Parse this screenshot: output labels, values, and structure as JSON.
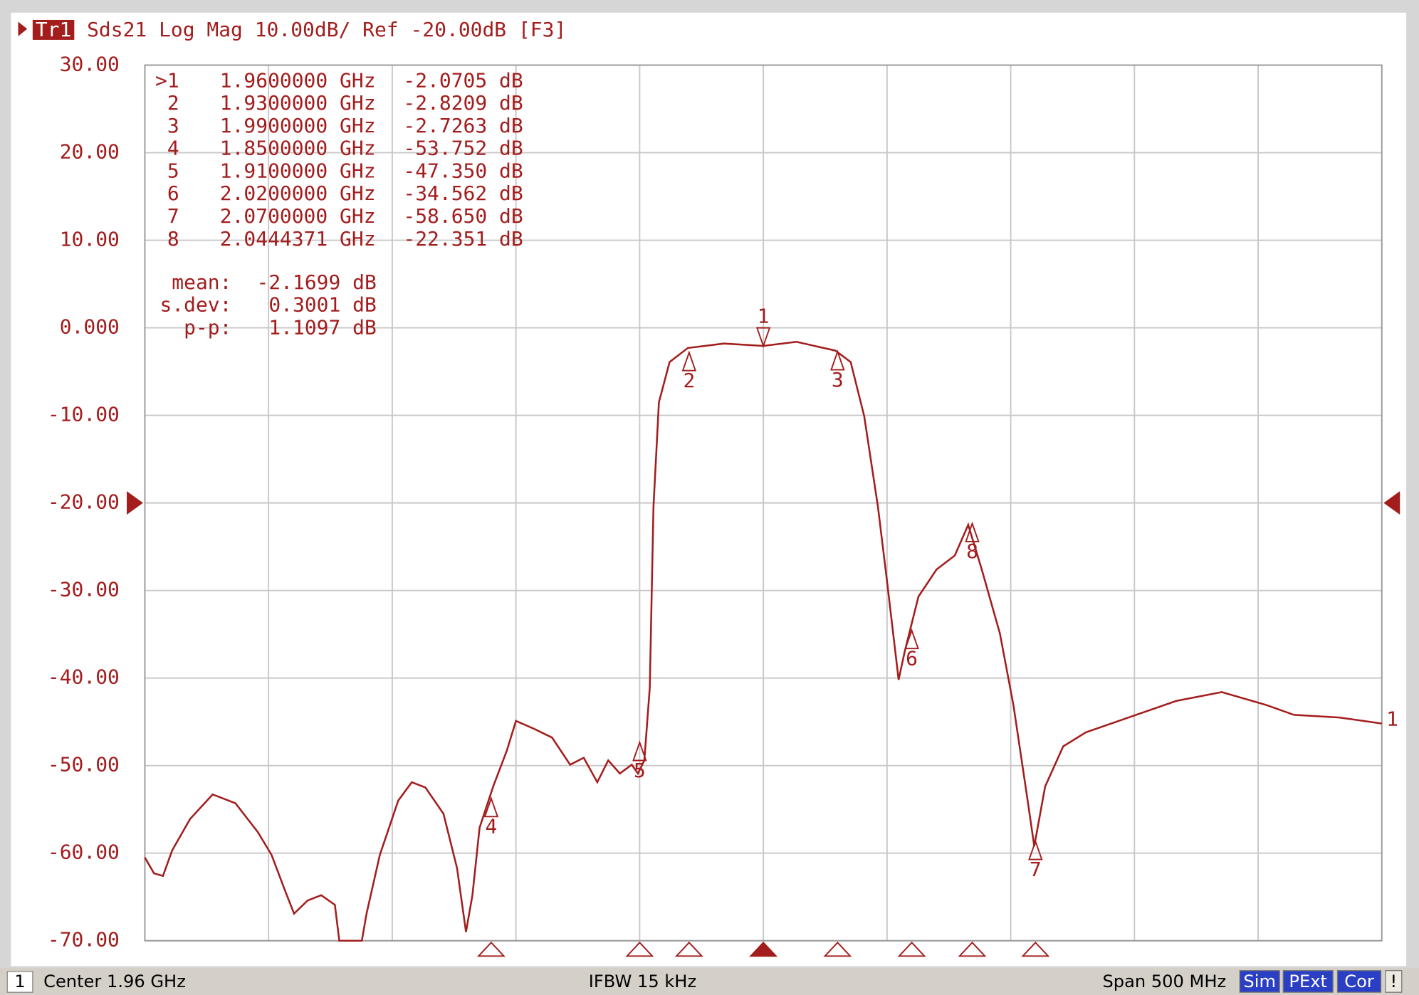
{
  "chart_data": {
    "type": "line",
    "badge": "Tr1",
    "title": "Sds21 Log Mag 10.00dB/ Ref -20.00dB [F3]",
    "color": "#a31d1d",
    "grid": true,
    "xlim": [
      1.71,
      2.21
    ],
    "ylim": [
      -70,
      30
    ],
    "yticks": [
      {
        "value": 30,
        "label": "30.00"
      },
      {
        "value": 20,
        "label": "20.00"
      },
      {
        "value": 10,
        "label": "10.00"
      },
      {
        "value": 0,
        "label": "0.000"
      },
      {
        "value": -10,
        "label": "-10.00"
      },
      {
        "value": -20,
        "label": "-20.00"
      },
      {
        "value": -30,
        "label": "-30.00"
      },
      {
        "value": -40,
        "label": "-40.00"
      },
      {
        "value": -50,
        "label": "-50.00"
      },
      {
        "value": -60,
        "label": "-60.00"
      },
      {
        "value": -70,
        "label": "-70.00"
      }
    ],
    "ref_level": -20,
    "x": [
      1.71,
      1.7137,
      1.7173,
      1.721,
      1.7283,
      1.7374,
      1.7466,
      1.7557,
      1.7612,
      1.7667,
      1.7703,
      1.7758,
      1.7813,
      1.7868,
      1.7886,
      1.7977,
      1.7996,
      1.805,
      1.8124,
      1.8179,
      1.8234,
      1.8307,
      1.8362,
      1.8398,
      1.8424,
      1.8453,
      1.8508,
      1.8563,
      1.86,
      1.8673,
      1.8746,
      1.8819,
      1.8874,
      1.8929,
      1.8973,
      1.902,
      1.9068,
      1.9093,
      1.9119,
      1.9141,
      1.9156,
      1.9178,
      1.9221,
      1.9295,
      1.9441,
      1.96,
      1.9734,
      1.9891,
      1.9953,
      2.0008,
      2.0063,
      2.0099,
      2.0147,
      2.0172,
      2.0227,
      2.03,
      2.0374,
      2.0428,
      2.0483,
      2.0556,
      2.0611,
      2.0666,
      2.0695,
      2.0739,
      2.0812,
      2.0904,
      2.1087,
      2.127,
      2.1453,
      2.1635,
      2.1745,
      2.1928,
      2.21
    ],
    "values": [
      -60.5,
      -62.3,
      -62.6,
      -59.7,
      -56.1,
      -53.3,
      -54.3,
      -57.6,
      -60.2,
      -64.3,
      -66.9,
      -65.4,
      -64.8,
      -65.9,
      -70,
      -70,
      -66.9,
      -60.2,
      -54,
      -51.9,
      -52.5,
      -55.5,
      -61.7,
      -69,
      -64.8,
      -57.1,
      -52.4,
      -48.3,
      -44.9,
      -45.8,
      -46.8,
      -49.9,
      -49.1,
      -51.9,
      -49.4,
      -50.9,
      -49.9,
      -50.9,
      -49.4,
      -41.1,
      -20.4,
      -8.5,
      -3.9,
      -2.3,
      -1.8,
      -2.07,
      -1.6,
      -2.6,
      -3.9,
      -10.1,
      -20.4,
      -28.7,
      -40.2,
      -36.9,
      -30.7,
      -27.6,
      -26,
      -22.5,
      -27.6,
      -34.9,
      -43.1,
      -53.5,
      -59.2,
      -52.4,
      -47.8,
      -46.2,
      -44.4,
      -42.6,
      -41.6,
      -43.1,
      -44.2,
      -44.5,
      -45.2
    ],
    "trace_end_label": "1",
    "markers": {
      "names": [
        ">1",
        "2",
        "3",
        "4",
        "5",
        "6",
        "7",
        "8"
      ],
      "trace_labels": [
        "1",
        "2",
        "3",
        "4",
        "5",
        "6",
        "7",
        "8"
      ],
      "x": [
        1.96,
        1.93,
        1.99,
        1.85,
        1.91,
        2.02,
        2.07,
        2.0444371
      ],
      "x_labels": [
        "1.9600000 GHz",
        "1.9300000 GHz",
        "1.9900000 GHz",
        "1.8500000 GHz",
        "1.9100000 GHz",
        "2.0200000 GHz",
        "2.0700000 GHz",
        "2.0444371 GHz"
      ],
      "values": [
        -2.0705,
        -2.8209,
        -2.7263,
        -53.752,
        -47.35,
        -34.562,
        -58.65,
        -22.351
      ],
      "value_labels": [
        "-2.0705 dB",
        "-2.8209 dB",
        "-2.7263 dB",
        "-53.752 dB",
        "-47.350 dB",
        "-34.562 dB",
        "-58.650 dB",
        "-22.351 dB"
      ]
    },
    "stats": [
      {
        "label": "mean:",
        "value": "-2.1699 dB"
      },
      {
        "label": "s.dev:",
        "value": "0.3001 dB"
      },
      {
        "label": "p-p:",
        "value": "1.1097 dB"
      }
    ]
  },
  "status_bar": {
    "channel": "1",
    "center": "Center 1.96 GHz",
    "ifbw": "IFBW 15 kHz",
    "span": "Span 500 MHz",
    "badges": [
      "Sim",
      "PExt",
      "Cor",
      "!"
    ]
  }
}
